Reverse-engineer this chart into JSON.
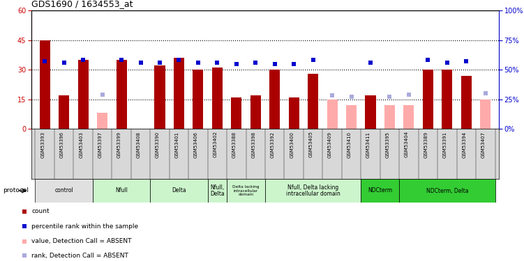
{
  "title": "GDS1690 / 1634553_at",
  "samples": [
    "GSM53393",
    "GSM53396",
    "GSM53403",
    "GSM53397",
    "GSM53399",
    "GSM53408",
    "GSM53390",
    "GSM53401",
    "GSM53406",
    "GSM53402",
    "GSM53388",
    "GSM53398",
    "GSM53392",
    "GSM53400",
    "GSM53405",
    "GSM53409",
    "GSM53410",
    "GSM53411",
    "GSM53395",
    "GSM53404",
    "GSM53389",
    "GSM53391",
    "GSM53394",
    "GSM53407"
  ],
  "count_present": [
    45,
    17,
    35,
    null,
    35,
    null,
    32,
    36,
    30,
    31,
    16,
    17,
    30,
    16,
    28,
    null,
    null,
    17,
    null,
    null,
    30,
    30,
    27,
    null
  ],
  "rank_present": [
    57,
    56,
    58,
    null,
    58,
    56,
    56,
    58,
    56,
    56,
    55,
    56,
    55,
    55,
    58,
    null,
    null,
    56,
    null,
    null,
    58,
    56,
    57,
    null
  ],
  "count_absent": [
    null,
    null,
    null,
    8,
    null,
    null,
    null,
    null,
    null,
    null,
    null,
    null,
    null,
    null,
    null,
    15,
    12,
    null,
    12,
    12,
    null,
    null,
    null,
    15
  ],
  "rank_absent": [
    null,
    null,
    null,
    29,
    null,
    null,
    null,
    null,
    null,
    null,
    null,
    null,
    null,
    null,
    null,
    28,
    27,
    null,
    27,
    29,
    null,
    null,
    null,
    30
  ],
  "ylim_left": [
    0,
    60
  ],
  "ylim_right": [
    0,
    100
  ],
  "yticks_left": [
    0,
    15,
    30,
    45,
    60
  ],
  "yticks_right": [
    0,
    25,
    50,
    75,
    100
  ],
  "hlines": [
    15,
    30,
    45
  ],
  "protocol_groups": [
    {
      "label": "control",
      "start": 0,
      "end": 2,
      "color": "#e0e0e0"
    },
    {
      "label": "Nfull",
      "start": 3,
      "end": 5,
      "color": "#ccf5cc"
    },
    {
      "label": "Delta",
      "start": 6,
      "end": 8,
      "color": "#ccf5cc"
    },
    {
      "label": "Nfull,\nDelta",
      "start": 9,
      "end": 9,
      "color": "#ccf5cc"
    },
    {
      "label": "Delta lacking\nintracellular\ndomain",
      "start": 10,
      "end": 11,
      "color": "#ccf5cc"
    },
    {
      "label": "Nfull, Delta lacking\nintracellular domain",
      "start": 12,
      "end": 16,
      "color": "#ccf5cc"
    },
    {
      "label": "NDCterm",
      "start": 17,
      "end": 18,
      "color": "#33cc33"
    },
    {
      "label": "NDCterm, Delta",
      "start": 19,
      "end": 23,
      "color": "#33cc33"
    }
  ],
  "bar_color_present": "#aa0000",
  "bar_color_absent": "#ffaaaa",
  "rank_color_present": "#0000cc",
  "rank_color_absent": "#aaaadd",
  "left_axis_color": "#cc0000",
  "right_axis_color": "#0000cc",
  "legend_items": [
    {
      "color": "#aa0000",
      "label": "count"
    },
    {
      "color": "#0000cc",
      "label": "percentile rank within the sample"
    },
    {
      "color": "#ffaaaa",
      "label": "value, Detection Call = ABSENT"
    },
    {
      "color": "#aaaadd",
      "label": "rank, Detection Call = ABSENT"
    }
  ]
}
